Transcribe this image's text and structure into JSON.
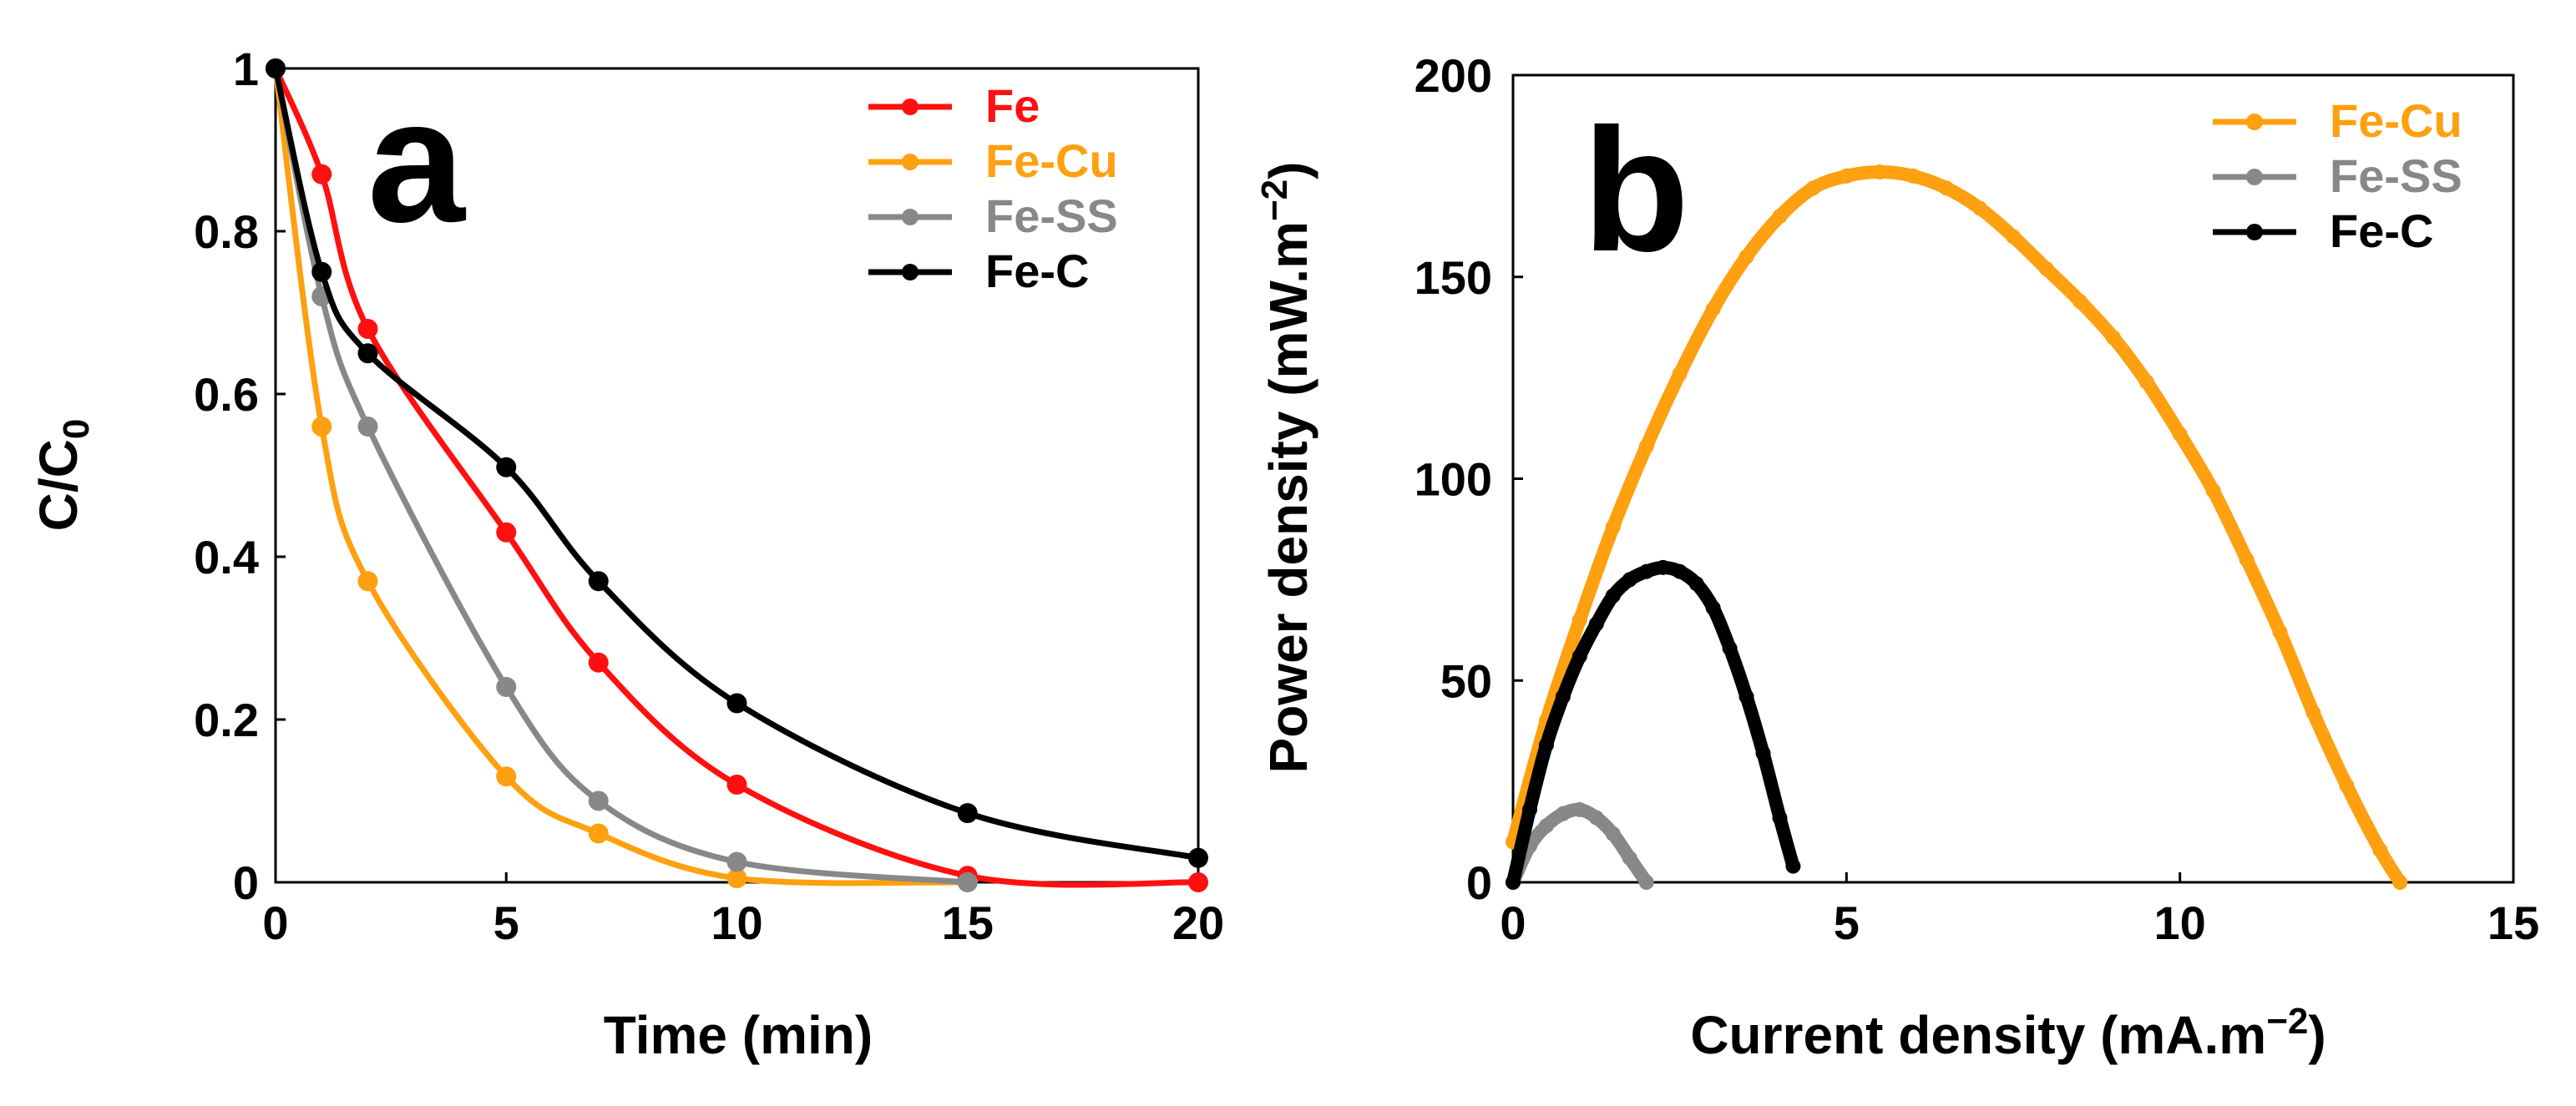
{
  "chart_data": [
    {
      "panel": "a",
      "type": "line",
      "xlabel": "Time (min)",
      "ylabel_main": "C/C",
      "ylabel_sub": "0",
      "xlim": [
        0,
        20
      ],
      "ylim": [
        0,
        1
      ],
      "xticks": [
        0,
        5,
        10,
        15,
        20
      ],
      "yticks": [
        0,
        0.2,
        0.4,
        0.6,
        0.8,
        1
      ],
      "xtick_labels": [
        "0",
        "5",
        "10",
        "15",
        "20"
      ],
      "ytick_labels": [
        "0",
        "0.2",
        "0.4",
        "0.6",
        "0.8",
        "1"
      ],
      "legend_position": "top-right",
      "series": [
        {
          "name": "Fe",
          "color": "#ff1010",
          "x": [
            0,
            1,
            2,
            5,
            7,
            10,
            15,
            20
          ],
          "y": [
            1.0,
            0.87,
            0.68,
            0.43,
            0.27,
            0.12,
            0.008,
            0.0
          ]
        },
        {
          "name": "Fe-Cu",
          "color": "#ffa010",
          "x": [
            0,
            1,
            2,
            5,
            7,
            10,
            15
          ],
          "y": [
            1.0,
            0.56,
            0.37,
            0.13,
            0.06,
            0.005,
            0.0
          ]
        },
        {
          "name": "Fe-SS",
          "color": "#888888",
          "x": [
            0,
            1,
            2,
            5,
            7,
            10,
            15
          ],
          "y": [
            1.0,
            0.72,
            0.56,
            0.24,
            0.1,
            0.025,
            0.0
          ]
        },
        {
          "name": "Fe-C",
          "color": "#000000",
          "x": [
            0,
            1,
            2,
            5,
            7,
            10,
            15,
            20
          ],
          "y": [
            1.0,
            0.75,
            0.65,
            0.51,
            0.37,
            0.22,
            0.085,
            0.03
          ]
        }
      ]
    },
    {
      "panel": "b",
      "type": "scatter",
      "xlabel_main": "Current density (mA.m",
      "xlabel_sup": "−2",
      "xlabel_end": ")",
      "ylabel_main": "Power density (mW.m",
      "ylabel_sup": "−2",
      "ylabel_end": ")",
      "xlim": [
        0,
        15
      ],
      "ylim": [
        0,
        200
      ],
      "xticks": [
        0,
        5,
        10,
        15
      ],
      "yticks": [
        0,
        50,
        100,
        150,
        200
      ],
      "xtick_labels": [
        "0",
        "5",
        "10",
        "15"
      ],
      "ytick_labels": [
        "0",
        "50",
        "100",
        "150",
        "200"
      ],
      "legend_position": "top-right",
      "series": [
        {
          "name": "Fe-Cu",
          "color": "#ffa010",
          "x": [
            0,
            0.5,
            1,
            1.5,
            2,
            2.5,
            3,
            3.5,
            4,
            4.5,
            5,
            5.5,
            6,
            6.5,
            7,
            7.5,
            8,
            8.5,
            9,
            9.5,
            10,
            10.5,
            11,
            11.5,
            12,
            12.5,
            13,
            13.3
          ],
          "y": [
            10,
            40,
            65,
            88,
            108,
            126,
            142,
            155,
            165,
            172,
            175,
            176,
            175,
            172,
            167,
            160,
            152,
            144,
            135,
            124,
            111,
            97,
            80,
            62,
            42,
            24,
            8,
            0
          ]
        },
        {
          "name": "Fe-SS",
          "color": "#888888",
          "x": [
            0,
            0.25,
            0.5,
            0.75,
            1.0,
            1.25,
            1.5,
            1.75,
            2.0
          ],
          "y": [
            0,
            9,
            14,
            17,
            18,
            16,
            12,
            6,
            0
          ]
        },
        {
          "name": "Fe-C",
          "color": "#000000",
          "x": [
            0,
            0.25,
            0.5,
            0.75,
            1.0,
            1.25,
            1.5,
            1.75,
            2.0,
            2.25,
            2.5,
            2.75,
            3.0,
            3.25,
            3.5,
            3.75,
            4.0,
            4.2
          ],
          "y": [
            0,
            18,
            34,
            46,
            56,
            64,
            71,
            75,
            77,
            78,
            77,
            74,
            68,
            58,
            46,
            32,
            16,
            4
          ]
        }
      ]
    }
  ]
}
